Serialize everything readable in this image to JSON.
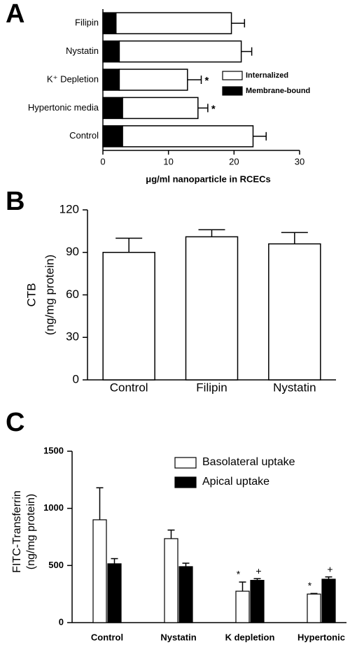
{
  "chart_data": [
    {
      "type": "hbar-stacked",
      "panel": "A",
      "categories": [
        "Filipin",
        "Nystatin",
        "K⁺ Depletion",
        "Hypertonic media",
        "Control"
      ],
      "series": [
        {
          "name": "Membrane-bound",
          "color": "#000000",
          "values": [
            2.0,
            2.5,
            2.5,
            3.0,
            3.0
          ],
          "errors": [
            null,
            0.2,
            0.2,
            0.2,
            null
          ]
        },
        {
          "name": "Internalized",
          "color": "#ffffff",
          "values": [
            17.6,
            18.6,
            10.4,
            11.5,
            19.9
          ],
          "errors": [
            2.0,
            1.6,
            2.1,
            1.5,
            2.0
          ]
        }
      ],
      "markers": [
        null,
        null,
        "*",
        "*",
        null
      ],
      "xlim": [
        0,
        30
      ],
      "xticks": [
        0,
        10,
        20,
        30
      ],
      "xlabel": "μg/ml nanoparticle in RCECs"
    },
    {
      "type": "bar",
      "panel": "B",
      "categories": [
        "Control",
        "Filipin",
        "Nystatin"
      ],
      "values": [
        90,
        101,
        96
      ],
      "errors": [
        10,
        5,
        8
      ],
      "color": "#ffffff",
      "ylim": [
        0,
        120
      ],
      "yticks": [
        0,
        30,
        60,
        90,
        120
      ],
      "ylabel": [
        "CTB",
        "(ng/mg protein)"
      ]
    },
    {
      "type": "grouped-bar",
      "panel": "C",
      "categories": [
        "Control",
        "Nystatin",
        "K depletion",
        "Hypertonic"
      ],
      "series": [
        {
          "name": "Basolateral uptake",
          "color": "#ffffff",
          "values": [
            900,
            735,
            275,
            250
          ],
          "errors": [
            280,
            75,
            80,
            5
          ],
          "markers": [
            null,
            null,
            "*",
            "*"
          ]
        },
        {
          "name": "Apical uptake",
          "color": "#000000",
          "values": [
            515,
            490,
            370,
            380
          ],
          "errors": [
            45,
            30,
            15,
            20
          ],
          "markers": [
            null,
            null,
            "+",
            "+"
          ]
        }
      ],
      "ylim": [
        0,
        1500
      ],
      "yticks": [
        0,
        500,
        1000,
        1500
      ],
      "ylabel": [
        "FITC-Transferrin",
        "(ng/mg protein)"
      ]
    }
  ]
}
